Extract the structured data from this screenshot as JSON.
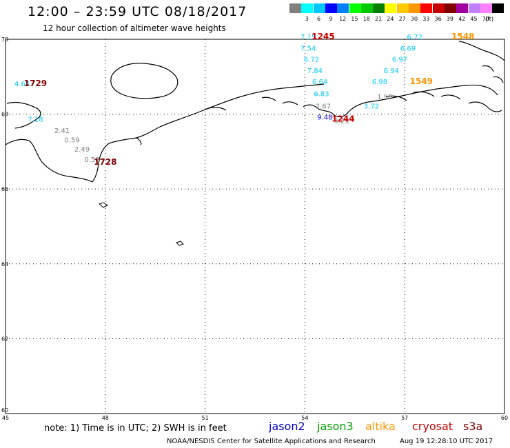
{
  "header": {
    "title": "12:00 – 23:59 UTC 08/18/2017",
    "subtitle": "12 hour collection of altimeter wave heights"
  },
  "color_scale": {
    "unit": "(ft)",
    "items": [
      {
        "label": "",
        "color": "#808080"
      },
      {
        "label": "3",
        "color": "#00ffff"
      },
      {
        "label": "6",
        "color": "#00c8ff"
      },
      {
        "label": "9",
        "color": "#0000ff"
      },
      {
        "label": "12",
        "color": "#0080ff"
      },
      {
        "label": "15",
        "color": "#00ff00"
      },
      {
        "label": "18",
        "color": "#00c800"
      },
      {
        "label": "21",
        "color": "#008000"
      },
      {
        "label": "24",
        "color": "#ffff00"
      },
      {
        "label": "27",
        "color": "#ffc800"
      },
      {
        "label": "30",
        "color": "#ff9600"
      },
      {
        "label": "33",
        "color": "#ff0000"
      },
      {
        "label": "36",
        "color": "#c80000"
      },
      {
        "label": "39",
        "color": "#800000"
      },
      {
        "label": "42",
        "color": "#a000a0"
      },
      {
        "label": "45",
        "color": "#c080ff"
      },
      {
        "label": "70",
        "color": "#ff80ff"
      },
      {
        "label": "",
        "color": "#000000"
      }
    ]
  },
  "map": {
    "lon_range": [
      45,
      60
    ],
    "lat_range": [
      60,
      70
    ],
    "lon_ticks": [
      "45",
      "48",
      "51",
      "54",
      "57",
      "60"
    ],
    "lat_ticks": [
      "62",
      "64",
      "66",
      "68",
      "70"
    ],
    "lat_bottom_label": "60"
  },
  "chart_data": {
    "type": "scatter",
    "xlabel": "",
    "ylabel": "",
    "xlim": [
      45,
      60
    ],
    "ylim": [
      60,
      70
    ],
    "points": [
      {
        "lon": 45.5,
        "lat": 68.75,
        "value": "4.65",
        "color": "#00c8ff"
      },
      {
        "lon": 45.9,
        "lat": 67.8,
        "value": "7.18",
        "color": "#00c8ff"
      },
      {
        "lon": 46.7,
        "lat": 67.5,
        "value": "2.41",
        "color": "#808080"
      },
      {
        "lon": 47.0,
        "lat": 67.25,
        "value": "0.59",
        "color": "#808080"
      },
      {
        "lon": 47.3,
        "lat": 67.0,
        "value": "2.49",
        "color": "#808080"
      },
      {
        "lon": 47.6,
        "lat": 66.72,
        "value": "0.58",
        "color": "#808080"
      },
      {
        "lon": 54.1,
        "lat": 70.0,
        "value": "7.15",
        "color": "#00c8ff"
      },
      {
        "lon": 54.1,
        "lat": 69.7,
        "value": "7.54",
        "color": "#00c8ff"
      },
      {
        "lon": 54.2,
        "lat": 69.4,
        "value": "6.72",
        "color": "#00c8ff"
      },
      {
        "lon": 54.3,
        "lat": 69.1,
        "value": "7.84",
        "color": "#00c8ff"
      },
      {
        "lon": 54.45,
        "lat": 68.8,
        "value": "6.64",
        "color": "#00c8ff"
      },
      {
        "lon": 54.5,
        "lat": 68.48,
        "value": "6.83",
        "color": "#00c8ff"
      },
      {
        "lon": 54.55,
        "lat": 68.15,
        "value": "2.67",
        "color": "#808080"
      },
      {
        "lon": 54.6,
        "lat": 67.85,
        "value": "9.48",
        "color": "#0000ff"
      },
      {
        "lon": 55.1,
        "lat": 67.75,
        "value": "3.25",
        "color": "#808080"
      },
      {
        "lon": 56.4,
        "lat": 68.4,
        "value": "1.96",
        "color": "#808080"
      },
      {
        "lon": 56.0,
        "lat": 68.15,
        "value": "3.72",
        "color": "#00c8ff"
      },
      {
        "lon": 57.3,
        "lat": 70.0,
        "value": "6.72",
        "color": "#00c8ff"
      },
      {
        "lon": 57.1,
        "lat": 69.7,
        "value": "6.69",
        "color": "#00c8ff"
      },
      {
        "lon": 56.85,
        "lat": 69.4,
        "value": "6.97",
        "color": "#00c8ff"
      },
      {
        "lon": 56.6,
        "lat": 69.1,
        "value": "6.94",
        "color": "#00c8ff"
      },
      {
        "lon": 56.25,
        "lat": 68.8,
        "value": "6.98",
        "color": "#00c8ff"
      }
    ],
    "time_labels": [
      {
        "lon": 45.9,
        "lat": 68.75,
        "text": "1729",
        "color": "#800000"
      },
      {
        "lon": 48.0,
        "lat": 66.65,
        "text": "1728",
        "color": "#800000"
      },
      {
        "lon": 54.55,
        "lat": 70.0,
        "text": "1245",
        "color": "#c80000"
      },
      {
        "lon": 55.15,
        "lat": 67.8,
        "text": "1244",
        "color": "#c80000"
      },
      {
        "lon": 58.75,
        "lat": 70.0,
        "text": "1548",
        "color": "#ff9600"
      },
      {
        "lon": 57.5,
        "lat": 68.8,
        "text": "1549",
        "color": "#ff9600"
      }
    ]
  },
  "footer": {
    "note": "note: 1) Time is in UTC; 2) SWH is in feet",
    "missions": [
      {
        "name": "jason2",
        "color": "#0000c8"
      },
      {
        "name": "jason3",
        "color": "#00a000"
      },
      {
        "name": "altika",
        "color": "#ff9600"
      },
      {
        "name": "cryosat",
        "color": "#c80000"
      },
      {
        "name": "s3a",
        "color": "#800000"
      }
    ],
    "credit": "NOAA/NESDIS Center for Satellite Applications and Research",
    "timestamp": "Aug 19 12:28:10 UTC 2017"
  }
}
